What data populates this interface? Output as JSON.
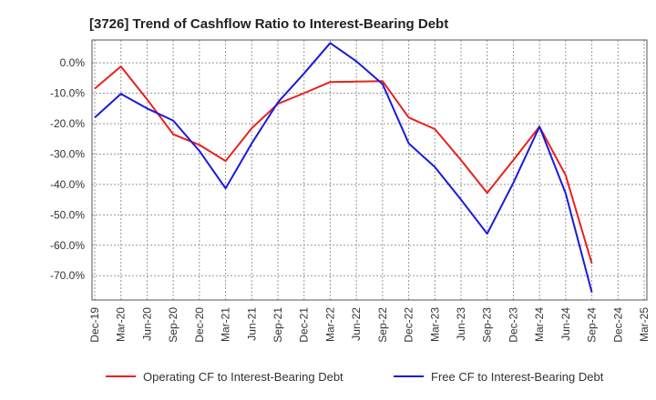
{
  "chart_data": {
    "type": "line",
    "title": "[3726]  Trend of Cashflow Ratio to Interest-Bearing Debt",
    "xlabel": "",
    "ylabel": "",
    "x": [
      "Dec-19",
      "Mar-20",
      "Jun-20",
      "Sep-20",
      "Dec-20",
      "Mar-21",
      "Jun-21",
      "Sep-21",
      "Dec-21",
      "Mar-22",
      "Jun-22",
      "Sep-22",
      "Dec-22",
      "Mar-23",
      "Jun-23",
      "Sep-23",
      "Dec-23",
      "Mar-24",
      "Jun-24",
      "Sep-24",
      "Dec-24",
      "Mar-25"
    ],
    "y_ticks": [
      "0.0%",
      "-10.0%",
      "-20.0%",
      "-30.0%",
      "-40.0%",
      "-50.0%",
      "-60.0%",
      "-70.0%"
    ],
    "ylim": [
      -78,
      7.5
    ],
    "grid": true,
    "legend_position": "bottom",
    "series": [
      {
        "name": "Operating CF to Interest-Bearing Debt",
        "color": "#e8211c",
        "values": [
          -8.5,
          -1.2,
          -12.0,
          -23.5,
          -27.0,
          -32.3,
          -21.5,
          -13.5,
          -10.0,
          -6.3,
          -6.2,
          -6.0,
          -18.0,
          -21.8,
          -32.0,
          -42.8,
          -32.0,
          -21.0,
          -37.0,
          -66.0,
          null,
          null
        ]
      },
      {
        "name": "Free CF to Interest-Bearing Debt",
        "color": "#1a1adb",
        "values": [
          -18.0,
          -10.2,
          -15.0,
          -19.0,
          -29.0,
          -41.3,
          -26.5,
          -13.0,
          -3.5,
          6.5,
          0.5,
          -7.0,
          -26.5,
          -34.3,
          -45.0,
          -56.2,
          -39.5,
          -21.0,
          -43.0,
          -75.5,
          null,
          null
        ]
      }
    ]
  }
}
